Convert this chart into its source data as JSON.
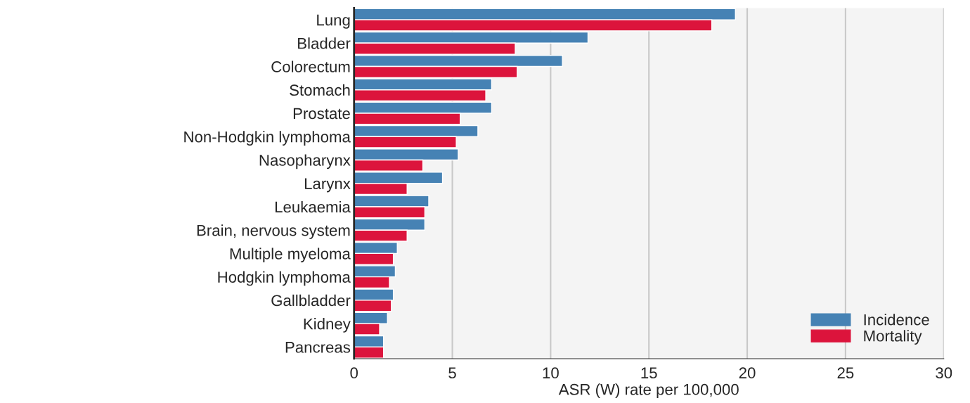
{
  "chart_data": {
    "type": "bar",
    "orientation": "horizontal",
    "xlabel": "ASR (W) rate per 100,000",
    "categories": [
      "Lung",
      "Bladder",
      "Colorectum",
      "Stomach",
      "Prostate",
      "Non-Hodgkin lymphoma",
      "Nasopharynx",
      "Larynx",
      "Leukaemia",
      "Brain, nervous system",
      "Multiple myeloma",
      "Hodgkin lymphoma",
      "Gallbladder",
      "Kidney",
      "Pancreas"
    ],
    "series": [
      {
        "name": "Incidence",
        "color": "#4682b4",
        "values": [
          19.4,
          11.9,
          10.6,
          7.0,
          7.0,
          6.3,
          5.3,
          4.5,
          3.8,
          3.6,
          2.2,
          2.1,
          2.0,
          1.7,
          1.5
        ]
      },
      {
        "name": "Mortality",
        "color": "#dc143c",
        "values": [
          18.2,
          8.2,
          8.3,
          6.7,
          5.4,
          5.2,
          3.5,
          2.7,
          3.6,
          2.7,
          2.0,
          1.8,
          1.9,
          1.3,
          1.5
        ]
      }
    ],
    "xlim": [
      0,
      30
    ],
    "xticks": [
      0,
      5,
      10,
      15,
      20,
      25,
      30
    ],
    "grid": "x",
    "legend": "bottom right"
  }
}
